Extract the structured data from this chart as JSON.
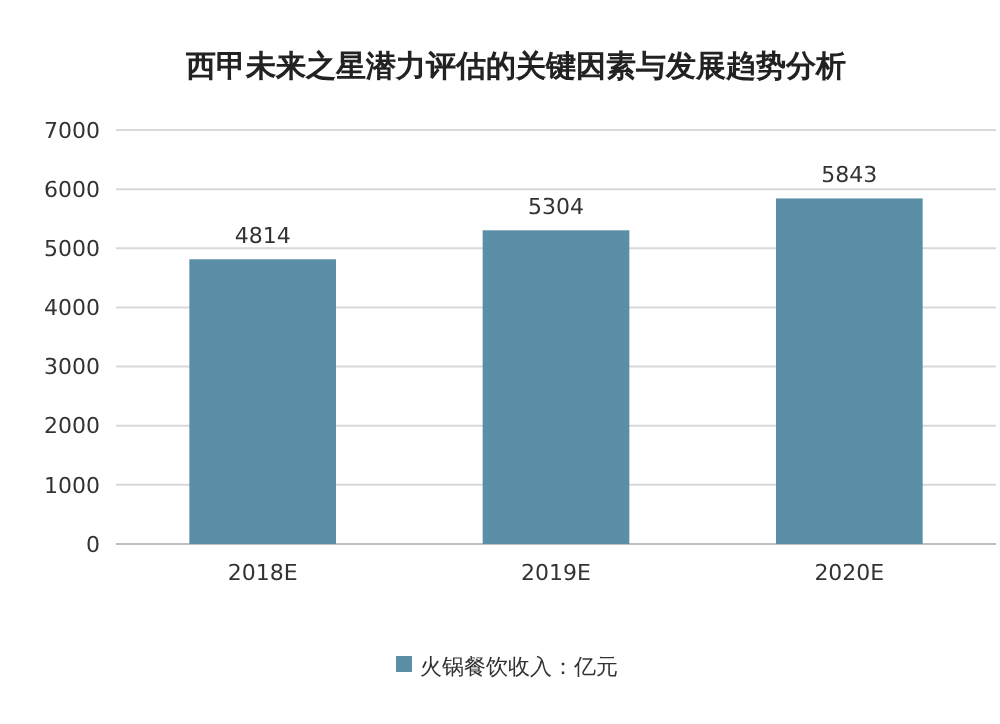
{
  "chart_data": {
    "type": "bar",
    "title": "西甲未来之星潜力评估的关键因素与发展趋势分析",
    "categories": [
      "2018E",
      "2019E",
      "2020E"
    ],
    "series": [
      {
        "name": "火锅餐饮收入：亿元",
        "color": "#5b8fa8",
        "values": [
          4814,
          5304,
          5843
        ]
      }
    ],
    "ylim": [
      0,
      7000
    ],
    "yticks": [
      0,
      1000,
      2000,
      3000,
      4000,
      5000,
      6000,
      7000
    ],
    "grid": "y",
    "legend": "bottom",
    "data_labels": true
  }
}
